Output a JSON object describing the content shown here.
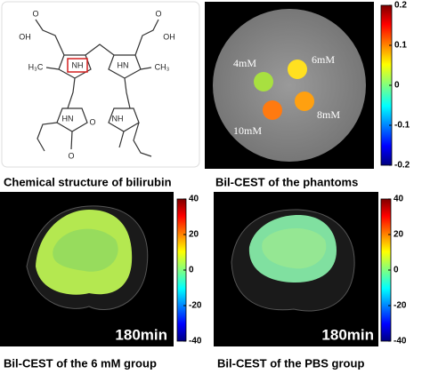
{
  "panels": [
    {
      "caption": "Chemical structure of bilirubin",
      "atoms": [
        "O",
        "OH",
        "O",
        "OH",
        "H₃C",
        "NH",
        "HN",
        "CH₃",
        "HN",
        "O",
        "NH",
        "O"
      ]
    },
    {
      "caption": "Bil-CEST of the phantoms",
      "labels": [
        "4mM",
        "6mM",
        "10mM",
        "8mM"
      ],
      "colorbar": {
        "lim": [
          -0.2,
          0.2
        ],
        "ticks": [
          0.2,
          0.1,
          0,
          -0.1,
          -0.2
        ]
      }
    },
    {
      "caption": "Bil-CEST of the 6 mM group",
      "time": "180min",
      "colorbar": {
        "lim": [
          -40,
          40
        ],
        "ticks": [
          40,
          20,
          0,
          -20,
          -40
        ]
      }
    },
    {
      "caption": "Bil-CEST of the PBS group",
      "time": "180min",
      "colorbar": {
        "lim": [
          -40,
          40
        ],
        "ticks": [
          40,
          20,
          0,
          -20,
          -40
        ]
      }
    }
  ]
}
